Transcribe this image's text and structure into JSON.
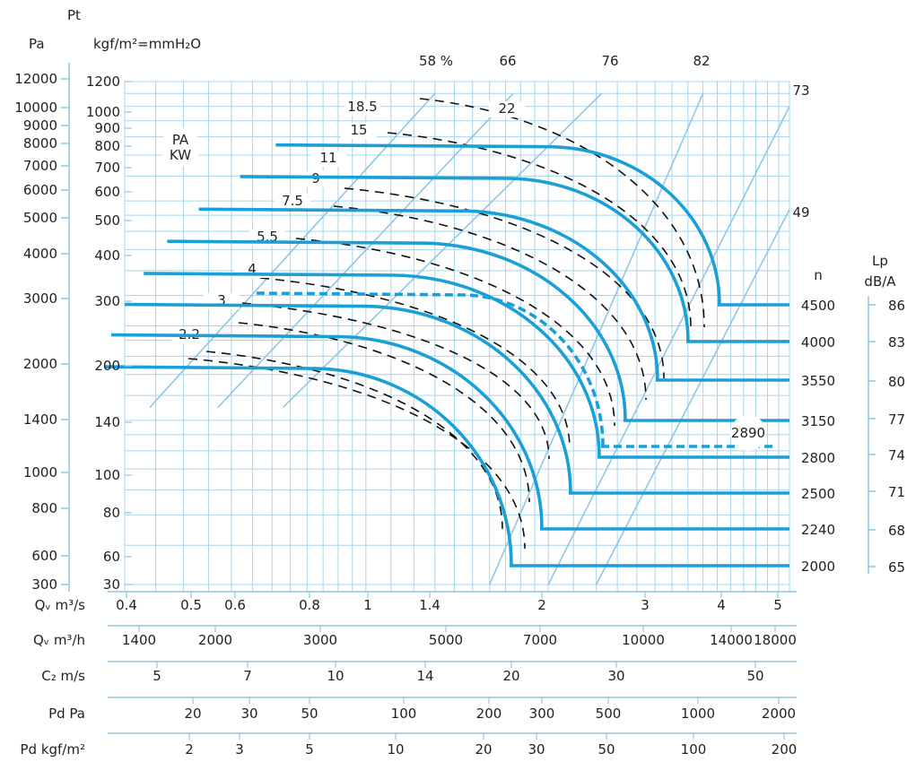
{
  "chart_data": {
    "type": "line",
    "title": "",
    "labels": {
      "pt": "Pt",
      "pa": "Pa",
      "kgf": "kgf/m²=mmH₂O",
      "pa_kw_1": "PA",
      "pa_kw_2": "KW",
      "n": "n",
      "lp": "Lp",
      "dba": "dB/A"
    },
    "pa_ticks": [
      12000,
      10000,
      9000,
      8000,
      7000,
      6000,
      5000,
      4000,
      3000,
      2000,
      1400,
      1000,
      800,
      600,
      300
    ],
    "kgf_ticks": [
      1200,
      1000,
      900,
      800,
      700,
      600,
      500,
      400,
      300,
      200,
      140,
      100,
      80,
      60,
      30
    ],
    "x_scales": [
      {
        "label": "Qᵥ m³/s",
        "ticks": [
          "0.4",
          "0.5",
          "0.6",
          "0.8",
          "1",
          "1.4",
          "2",
          "3",
          "4",
          "5"
        ]
      },
      {
        "label": "Qᵥ m³/h",
        "ticks": [
          "1400",
          "2000",
          "3000",
          "5000",
          "7000",
          "10000",
          "14000",
          "18000"
        ]
      },
      {
        "label": "C₂ m/s",
        "ticks": [
          "5",
          "7",
          "10",
          "14",
          "20",
          "30",
          "50"
        ]
      },
      {
        "label": "Pd Pa",
        "ticks": [
          "20",
          "30",
          "50",
          "100",
          "200",
          "300",
          "500",
          "1000",
          "2000"
        ]
      },
      {
        "label": "Pd kgf/m²",
        "ticks": [
          "2",
          "3",
          "5",
          "10",
          "20",
          "30",
          "50",
          "100",
          "200"
        ]
      }
    ],
    "efficiency_lines": [
      "58 %",
      "66",
      "76",
      "82",
      "73",
      "49"
    ],
    "power_labels": [
      "18.5",
      "22",
      "15",
      "11",
      "9",
      "7.5",
      "5.5",
      "4",
      "3",
      "2.2"
    ],
    "speeds": {
      "series": [
        {
          "name": "4500",
          "db": "86",
          "pressure_kgf": 290
        },
        {
          "name": "4000",
          "db": "83",
          "pressure_kgf": 230
        },
        {
          "name": "3550",
          "db": "80",
          "pressure_kgf": 181
        },
        {
          "name": "3150",
          "db": "77",
          "pressure_kgf": 143
        },
        {
          "name": "2800",
          "db": "74",
          "pressure_kgf": 113
        },
        {
          "name": "2500",
          "db": "71",
          "pressure_kgf": 90
        },
        {
          "name": "2240",
          "db": "68",
          "pressure_kgf": 72
        },
        {
          "name": "2000",
          "db": "65",
          "pressure_kgf": 57
        }
      ],
      "dashed": {
        "name": "2890",
        "pressure_kgf": 122
      }
    },
    "colors": {
      "curve": "#1a9fd6",
      "grid": "#a9d4ec",
      "dash": "#111111",
      "axis": "#8fc6e6",
      "text": "#222222"
    }
  }
}
